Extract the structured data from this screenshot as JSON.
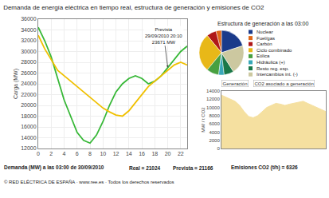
{
  "chart_data": [
    {
      "type": "line",
      "title": "Demanda de energía eléctrica en tiempo real, estructura de generación y emisiones de CO2",
      "x": [
        0,
        1,
        2,
        3,
        4,
        5,
        6,
        7,
        8,
        9,
        10,
        11,
        12,
        13,
        14,
        15,
        16,
        17,
        18,
        19,
        20,
        21,
        22,
        23
      ],
      "series": [
        {
          "color": "#38b838",
          "values": [
            34500,
            32000,
            29000,
            25000,
            21000,
            18000,
            15000,
            13500,
            13000,
            14500,
            17000,
            20000,
            22500,
            24000,
            25000,
            25500,
            25000,
            24000,
            24500,
            25500,
            27000,
            28500,
            30000,
            31000
          ]
        },
        {
          "color": "#f0c000",
          "values": [
            33000,
            30500,
            28500,
            26500,
            25500,
            24500,
            23500,
            22500,
            21500,
            20500,
            19500,
            18800,
            18200,
            18000,
            19000,
            20500,
            22000,
            23500,
            24500,
            25500,
            26500,
            27500,
            28000,
            27500
          ]
        }
      ],
      "xlim": [
        0,
        23
      ],
      "xticks": [
        0,
        2,
        4,
        6,
        8,
        10,
        12,
        14,
        16,
        18,
        20,
        22
      ],
      "ylim": [
        12000,
        36000
      ],
      "yticks": [
        12000,
        14000,
        16000,
        18000,
        20000,
        22000,
        24000,
        26000,
        28000,
        30000,
        32000,
        34000,
        36000
      ],
      "ylabel": "Carga (MW)",
      "grid": true,
      "annotations": [
        {
          "text": "Prevista\n29/09/2010 20:10\n23671 MW",
          "x": 20,
          "y": 27000
        },
        {
          "text": "Demanda (MW) a las 03:00 de 30/09/2010"
        },
        {
          "text": "Real = 21024"
        },
        {
          "text": "Prevista = 21166"
        },
        {
          "text": "Emisiones CO2 (t/h) = 6326"
        },
        {
          "text": "© RED ELÉCTRICA DE ESPAÑA · www.ree.es · Todos los derechos reservados"
        }
      ]
    },
    {
      "type": "pie",
      "title": "Estructura de generación a las 03:00",
      "categories": [
        "Nuclear",
        "Fuel/gas",
        "Carbón",
        "Ciclo combinado",
        "Eólica",
        "Hidráulica (+)",
        "Resto reg. esp.",
        "Intercambios int. (-)"
      ],
      "values": [
        20,
        4,
        7,
        28,
        9,
        4,
        7,
        21
      ],
      "colors": [
        "#1a3a8a",
        "#e06818",
        "#b01818",
        "#e8b818",
        "#48a040",
        "#38a8b8",
        "#1a7848",
        "#ccc8a0"
      ]
    },
    {
      "type": "area",
      "x": [
        0,
        1,
        2,
        3,
        4,
        5,
        6,
        7,
        8,
        9,
        10,
        11,
        12,
        13,
        14,
        15,
        16,
        17,
        18,
        19,
        20,
        21,
        22,
        23
      ],
      "values": [
        13000,
        12500,
        12000,
        11500,
        10500,
        9000,
        7800,
        7500,
        8000,
        9000,
        10000,
        10500,
        11000,
        10800,
        10500,
        10800,
        11000,
        11200,
        11500,
        11000,
        10500,
        10000,
        9500,
        9000
      ],
      "color": "#f5e0a0",
      "xlim": [
        0,
        23
      ],
      "ylim": [
        0,
        14000
      ],
      "yticks": [
        0,
        2000,
        4000,
        6000,
        8000,
        10000,
        12000,
        14000
      ],
      "ylabel": "MW / t CO2",
      "tick_labels": "y",
      "grid": false,
      "annotations": [
        {
          "text": "Generación"
        },
        {
          "text": "CO2 asociado a generación"
        }
      ]
    }
  ]
}
